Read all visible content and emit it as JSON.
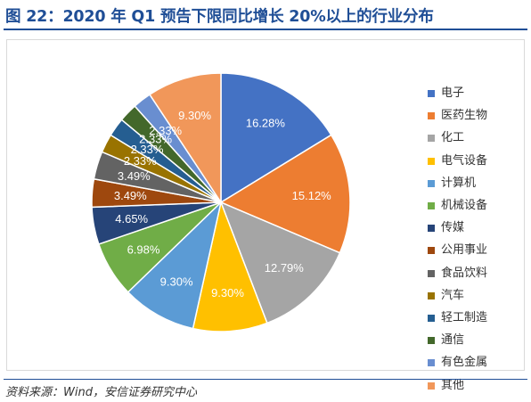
{
  "title": "图 22：2020 年 Q1 预告下限同比增长 20%以上的行业分布",
  "source": "资料来源：Wind，安信证券研究中心",
  "chart_data": {
    "type": "pie",
    "title": "",
    "legend_position": "right",
    "start_angle_deg": 0,
    "direction": "clockwise",
    "slices": [
      {
        "label": "电子",
        "value": 16.28,
        "display": "16.28%",
        "color": "#4472c4",
        "label_color": "#ffffff"
      },
      {
        "label": "医药生物",
        "value": 15.12,
        "display": "15.12%",
        "color": "#ed7d31",
        "label_color": "#ffffff"
      },
      {
        "label": "化工",
        "value": 12.79,
        "display": "12.79%",
        "color": "#a5a5a5",
        "label_color": "#ffffff"
      },
      {
        "label": "电气设备",
        "value": 9.3,
        "display": "9.30%",
        "color": "#ffc000",
        "label_color": "#ffffff"
      },
      {
        "label": "计算机",
        "value": 9.3,
        "display": "9.30%",
        "color": "#5b9bd5",
        "label_color": "#ffffff"
      },
      {
        "label": "机械设备",
        "value": 6.98,
        "display": "6.98%",
        "color": "#70ad47",
        "label_color": "#ffffff"
      },
      {
        "label": "传媒",
        "value": 4.65,
        "display": "4.65%",
        "color": "#264478",
        "label_color": "#ffffff"
      },
      {
        "label": "公用事业",
        "value": 3.49,
        "display": "3.49%",
        "color": "#9e480e",
        "label_color": "#ffffff"
      },
      {
        "label": "食品饮料",
        "value": 3.49,
        "display": "3.49%",
        "color": "#636363",
        "label_color": "#ffffff"
      },
      {
        "label": "汽车",
        "value": 2.33,
        "display": "2.33%",
        "color": "#997300",
        "label_color": "#ffffff"
      },
      {
        "label": "轻工制造",
        "value": 2.33,
        "display": "2.33%",
        "color": "#255e91",
        "label_color": "#ffffff"
      },
      {
        "label": "通信",
        "value": 2.33,
        "display": "2.33%",
        "color": "#43682b",
        "label_color": "#ffffff"
      },
      {
        "label": "有色金属",
        "value": 2.33,
        "display": "2.33%",
        "color": "#698ed0",
        "label_color": "#ffffff"
      },
      {
        "label": "其他",
        "value": 9.3,
        "display": "9.30%",
        "color": "#f1975a",
        "label_color": "#ffffff"
      }
    ]
  }
}
